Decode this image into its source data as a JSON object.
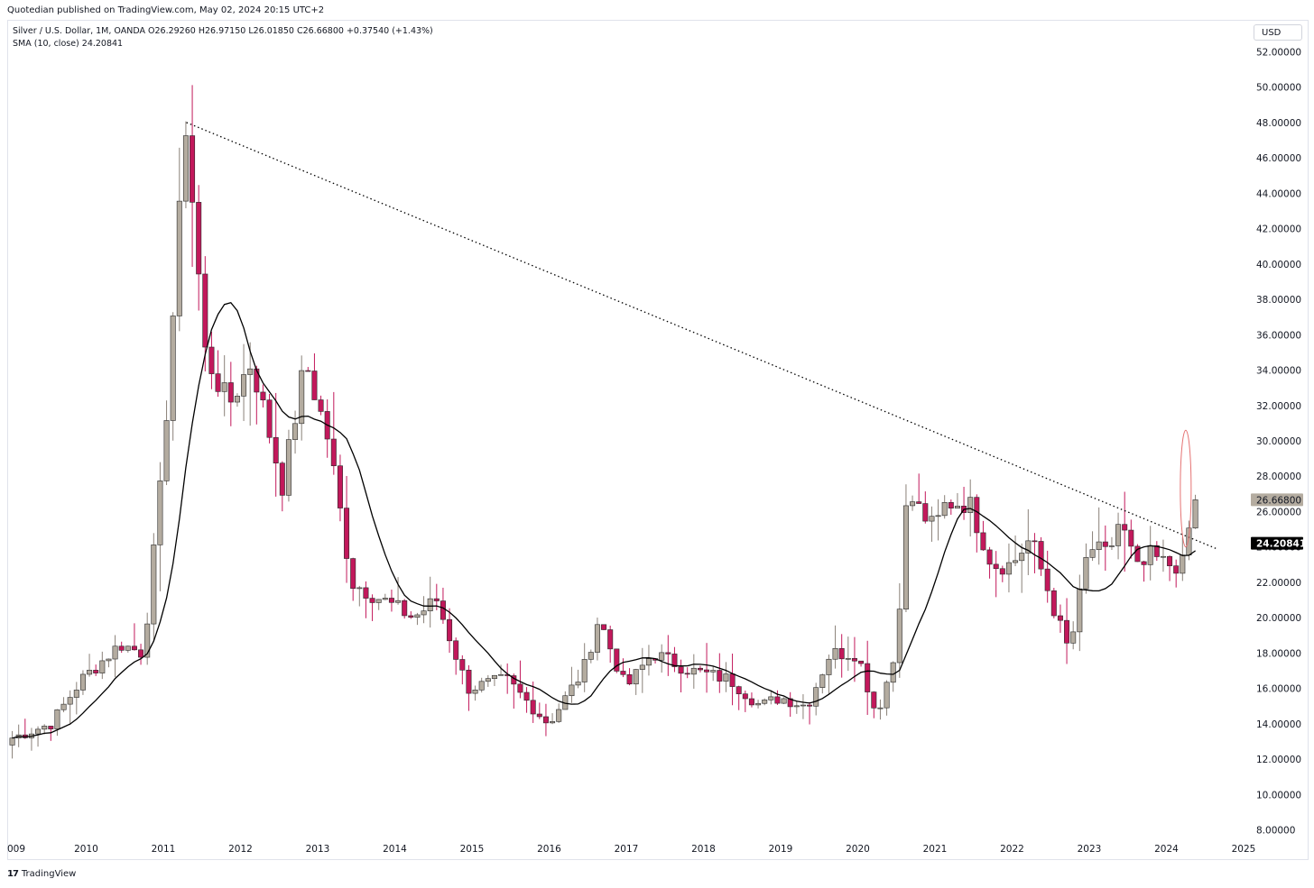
{
  "publisher": "Quotedian published on TradingView.com, May 02, 2024 20:15 UTC+2",
  "legend": {
    "line1": "Silver / U.S. Dollar, 1M, OANDA  O26.29260  H26.97150  L26.01850  C26.66800  +0.37540 (+1.43%)",
    "line2": "SMA (10, close)  24.20841"
  },
  "currency": "USD",
  "brand": {
    "logo_text": "17",
    "label": "TradingView"
  },
  "colors": {
    "up": "#b4aca0",
    "down": "#c2185b",
    "sma": "#000000",
    "trend": "#000000",
    "annotation": "#e57373"
  },
  "chart_data": {
    "type": "candlestick",
    "symbol": "Silver / U.S. Dollar",
    "interval": "1M",
    "ylim": [
      6.5,
      53.5
    ],
    "y_ticks": [
      "8.00000",
      "10.00000",
      "12.00000",
      "14.00000",
      "16.00000",
      "18.00000",
      "20.00000",
      "22.00000",
      "24.00000",
      "26.00000",
      "28.00000",
      "30.00000",
      "32.00000",
      "34.00000",
      "36.00000",
      "38.00000",
      "40.00000",
      "42.00000",
      "44.00000",
      "46.00000",
      "48.00000",
      "50.00000",
      "52.00000"
    ],
    "x_ticks": [
      "009",
      "2010",
      "2011",
      "2012",
      "2013",
      "2014",
      "2015",
      "2016",
      "2017",
      "2018",
      "2019",
      "2020",
      "2021",
      "2022",
      "2023",
      "2024",
      "2025"
    ],
    "x_range": [
      2009.0,
      2025.0
    ],
    "price_label": "26.66800",
    "sma_label": "24.20841",
    "sma_last": 24.20841,
    "last_close": 26.668,
    "trendline": {
      "start": [
        2011.3,
        48.0
      ],
      "end": [
        2024.65,
        23.9
      ]
    },
    "highlight": {
      "x": 2024.25,
      "y_low": 24.0,
      "y_high": 30.6
    },
    "key_prices": [
      [
        2009.0,
        13.2
      ],
      [
        2009.5,
        14.0
      ],
      [
        2009.9,
        16.5
      ],
      [
        2010.4,
        18.5
      ],
      [
        2010.7,
        18.0
      ],
      [
        2010.95,
        28.5
      ],
      [
        2011.25,
        48.0
      ],
      [
        2011.5,
        35.0
      ],
      [
        2011.8,
        32.0
      ],
      [
        2012.1,
        34.5
      ],
      [
        2012.5,
        27.5
      ],
      [
        2012.8,
        34.5
      ],
      [
        2013.1,
        30.0
      ],
      [
        2013.4,
        22.0
      ],
      [
        2013.8,
        21.0
      ],
      [
        2014.2,
        20.0
      ],
      [
        2014.5,
        21.0
      ],
      [
        2014.9,
        16.0
      ],
      [
        2015.4,
        16.5
      ],
      [
        2015.95,
        14.0
      ],
      [
        2016.4,
        17.0
      ],
      [
        2016.6,
        20.0
      ],
      [
        2016.95,
        16.0
      ],
      [
        2017.3,
        18.0
      ],
      [
        2017.8,
        17.0
      ],
      [
        2018.3,
        16.5
      ],
      [
        2018.7,
        15.0
      ],
      [
        2018.95,
        15.5
      ],
      [
        2019.3,
        15.0
      ],
      [
        2019.6,
        18.0
      ],
      [
        2019.95,
        18.0
      ],
      [
        2020.2,
        14.5
      ],
      [
        2020.45,
        18.0
      ],
      [
        2020.6,
        27.0
      ],
      [
        2020.95,
        25.0
      ],
      [
        2021.1,
        26.5
      ],
      [
        2021.4,
        26.5
      ],
      [
        2021.7,
        23.0
      ],
      [
        2021.95,
        23.0
      ],
      [
        2022.2,
        24.5
      ],
      [
        2022.5,
        20.5
      ],
      [
        2022.7,
        18.0
      ],
      [
        2022.95,
        24.0
      ],
      [
        2023.2,
        23.5
      ],
      [
        2023.35,
        25.5
      ],
      [
        2023.6,
        22.5
      ],
      [
        2023.75,
        23.5
      ],
      [
        2023.95,
        23.0
      ],
      [
        2024.2,
        23.0
      ],
      [
        2024.25,
        25.0
      ],
      [
        2024.33,
        26.67
      ]
    ]
  }
}
